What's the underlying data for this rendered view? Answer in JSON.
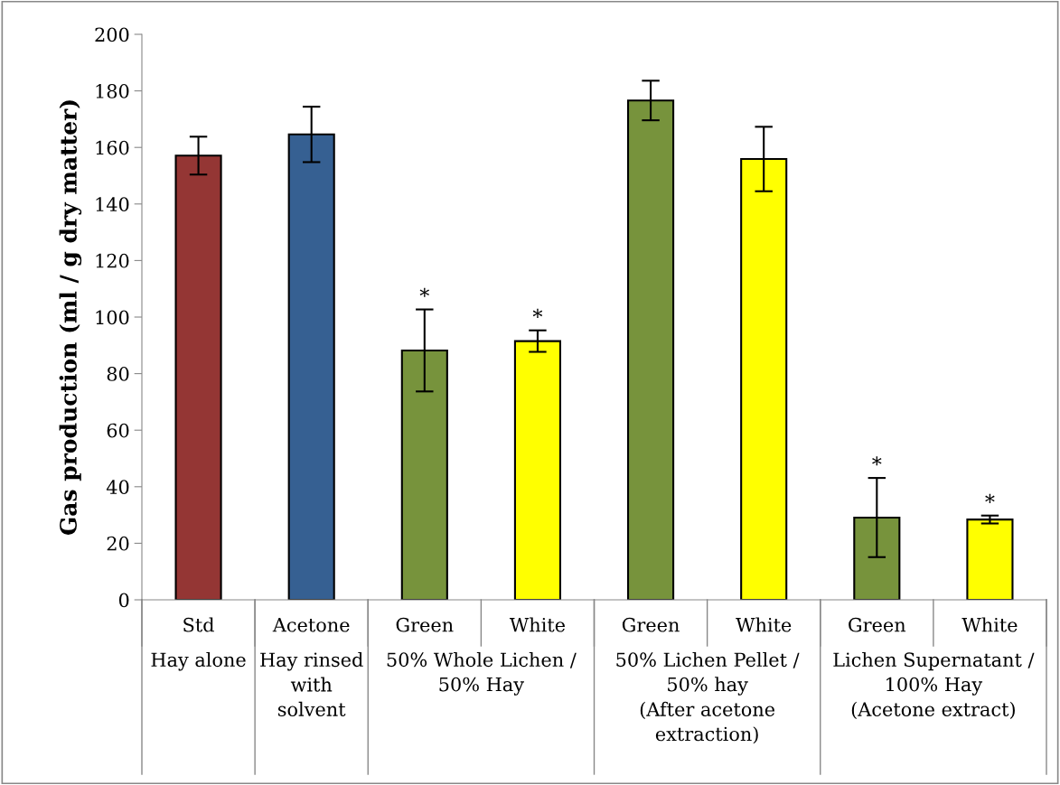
{
  "chart_data": {
    "type": "bar",
    "ylabel": "Gas production (ml / g dry matter)",
    "categories": [
      "Std",
      "Acetone",
      "Green",
      "White",
      "Green",
      "White",
      "Green",
      "White"
    ],
    "values": [
      157.1,
      164.6,
      88.2,
      91.5,
      176.6,
      155.9,
      29.1,
      28.4
    ],
    "errors": [
      6.7,
      9.8,
      14.5,
      3.8,
      7.0,
      11.4,
      14.0,
      1.4
    ],
    "colors": [
      "#943634",
      "#366092",
      "#77933c",
      "#ffff00",
      "#77933c",
      "#ffff00",
      "#77933c",
      "#ffff00"
    ],
    "value_labels": [
      null,
      null,
      "*",
      "*",
      null,
      null,
      "*",
      "*"
    ],
    "annotations": [
      "Hay alone",
      "Hay rinsed\nwith\nsolvent",
      "50% Whole Lichen /\n50% Hay",
      "50% Lichen Pellet /\n50% hay\n(After acetone\nextraction)",
      "Lichen Supernatant /\n100% Hay\n(Acetone extract)"
    ],
    "ylim": [
      0,
      200
    ],
    "yticks": [
      0,
      20,
      40,
      60,
      80,
      100,
      120,
      140,
      160,
      180,
      200
    ],
    "grid": false,
    "legend": false
  }
}
